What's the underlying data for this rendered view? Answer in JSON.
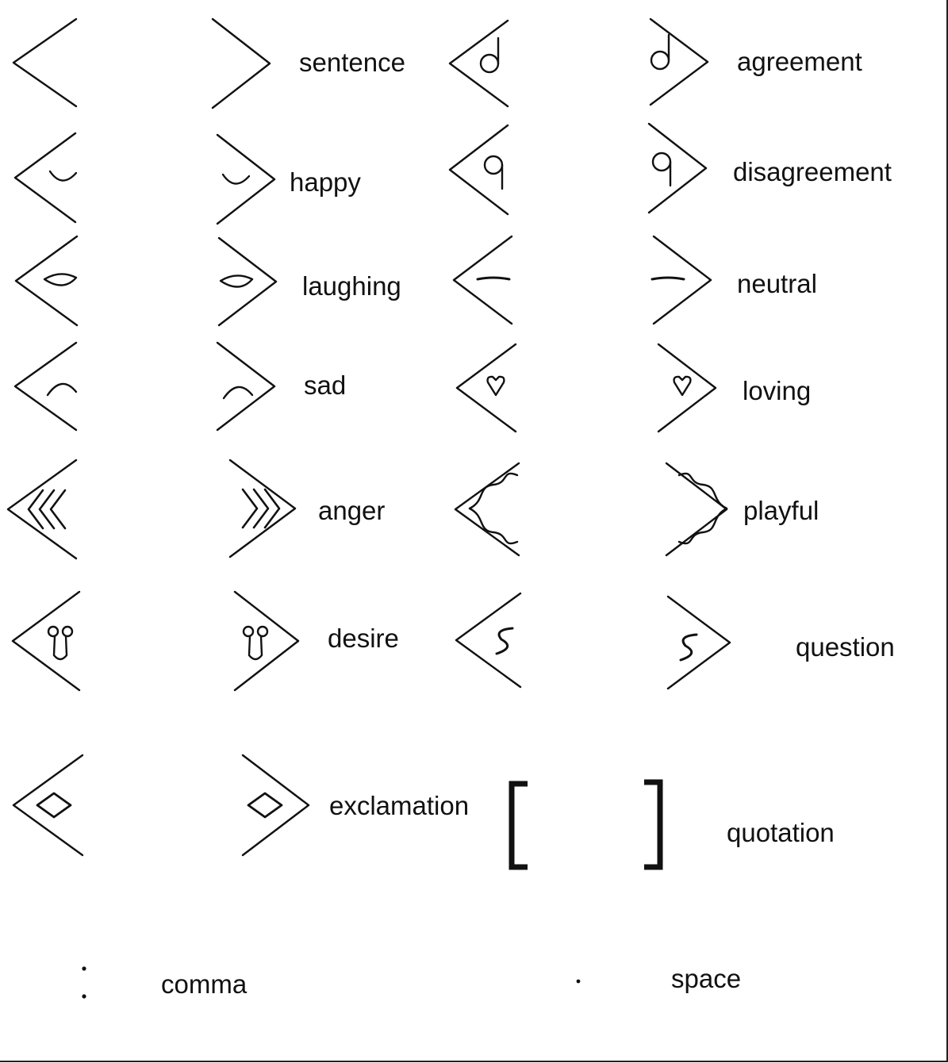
{
  "legend": {
    "entries": [
      {
        "id": "sentence",
        "label": "sentence",
        "mark": "none"
      },
      {
        "id": "agreement",
        "label": "agreement",
        "mark": "agreement"
      },
      {
        "id": "happy",
        "label": "happy",
        "mark": "smile"
      },
      {
        "id": "disagreement",
        "label": "disagreement",
        "mark": "disagreement"
      },
      {
        "id": "laughing",
        "label": "laughing",
        "mark": "eye"
      },
      {
        "id": "neutral",
        "label": "neutral",
        "mark": "dash"
      },
      {
        "id": "sad",
        "label": "sad",
        "mark": "frown"
      },
      {
        "id": "loving",
        "label": "loving",
        "mark": "heart"
      },
      {
        "id": "anger",
        "label": "anger",
        "mark": "chevrons"
      },
      {
        "id": "playful",
        "label": "playful",
        "mark": "waves"
      },
      {
        "id": "desire",
        "label": "desire",
        "mark": "desire"
      },
      {
        "id": "question",
        "label": "question",
        "mark": "squiggle"
      },
      {
        "id": "exclamation",
        "label": "exclamation",
        "mark": "diamond"
      },
      {
        "id": "quotation",
        "label": "quotation",
        "mark": "brackets"
      },
      {
        "id": "comma",
        "label": "comma",
        "mark": "colon"
      },
      {
        "id": "space",
        "label": "space",
        "mark": "dot"
      }
    ]
  },
  "colors": {
    "ink": "#111111",
    "background": "#ffffff"
  }
}
